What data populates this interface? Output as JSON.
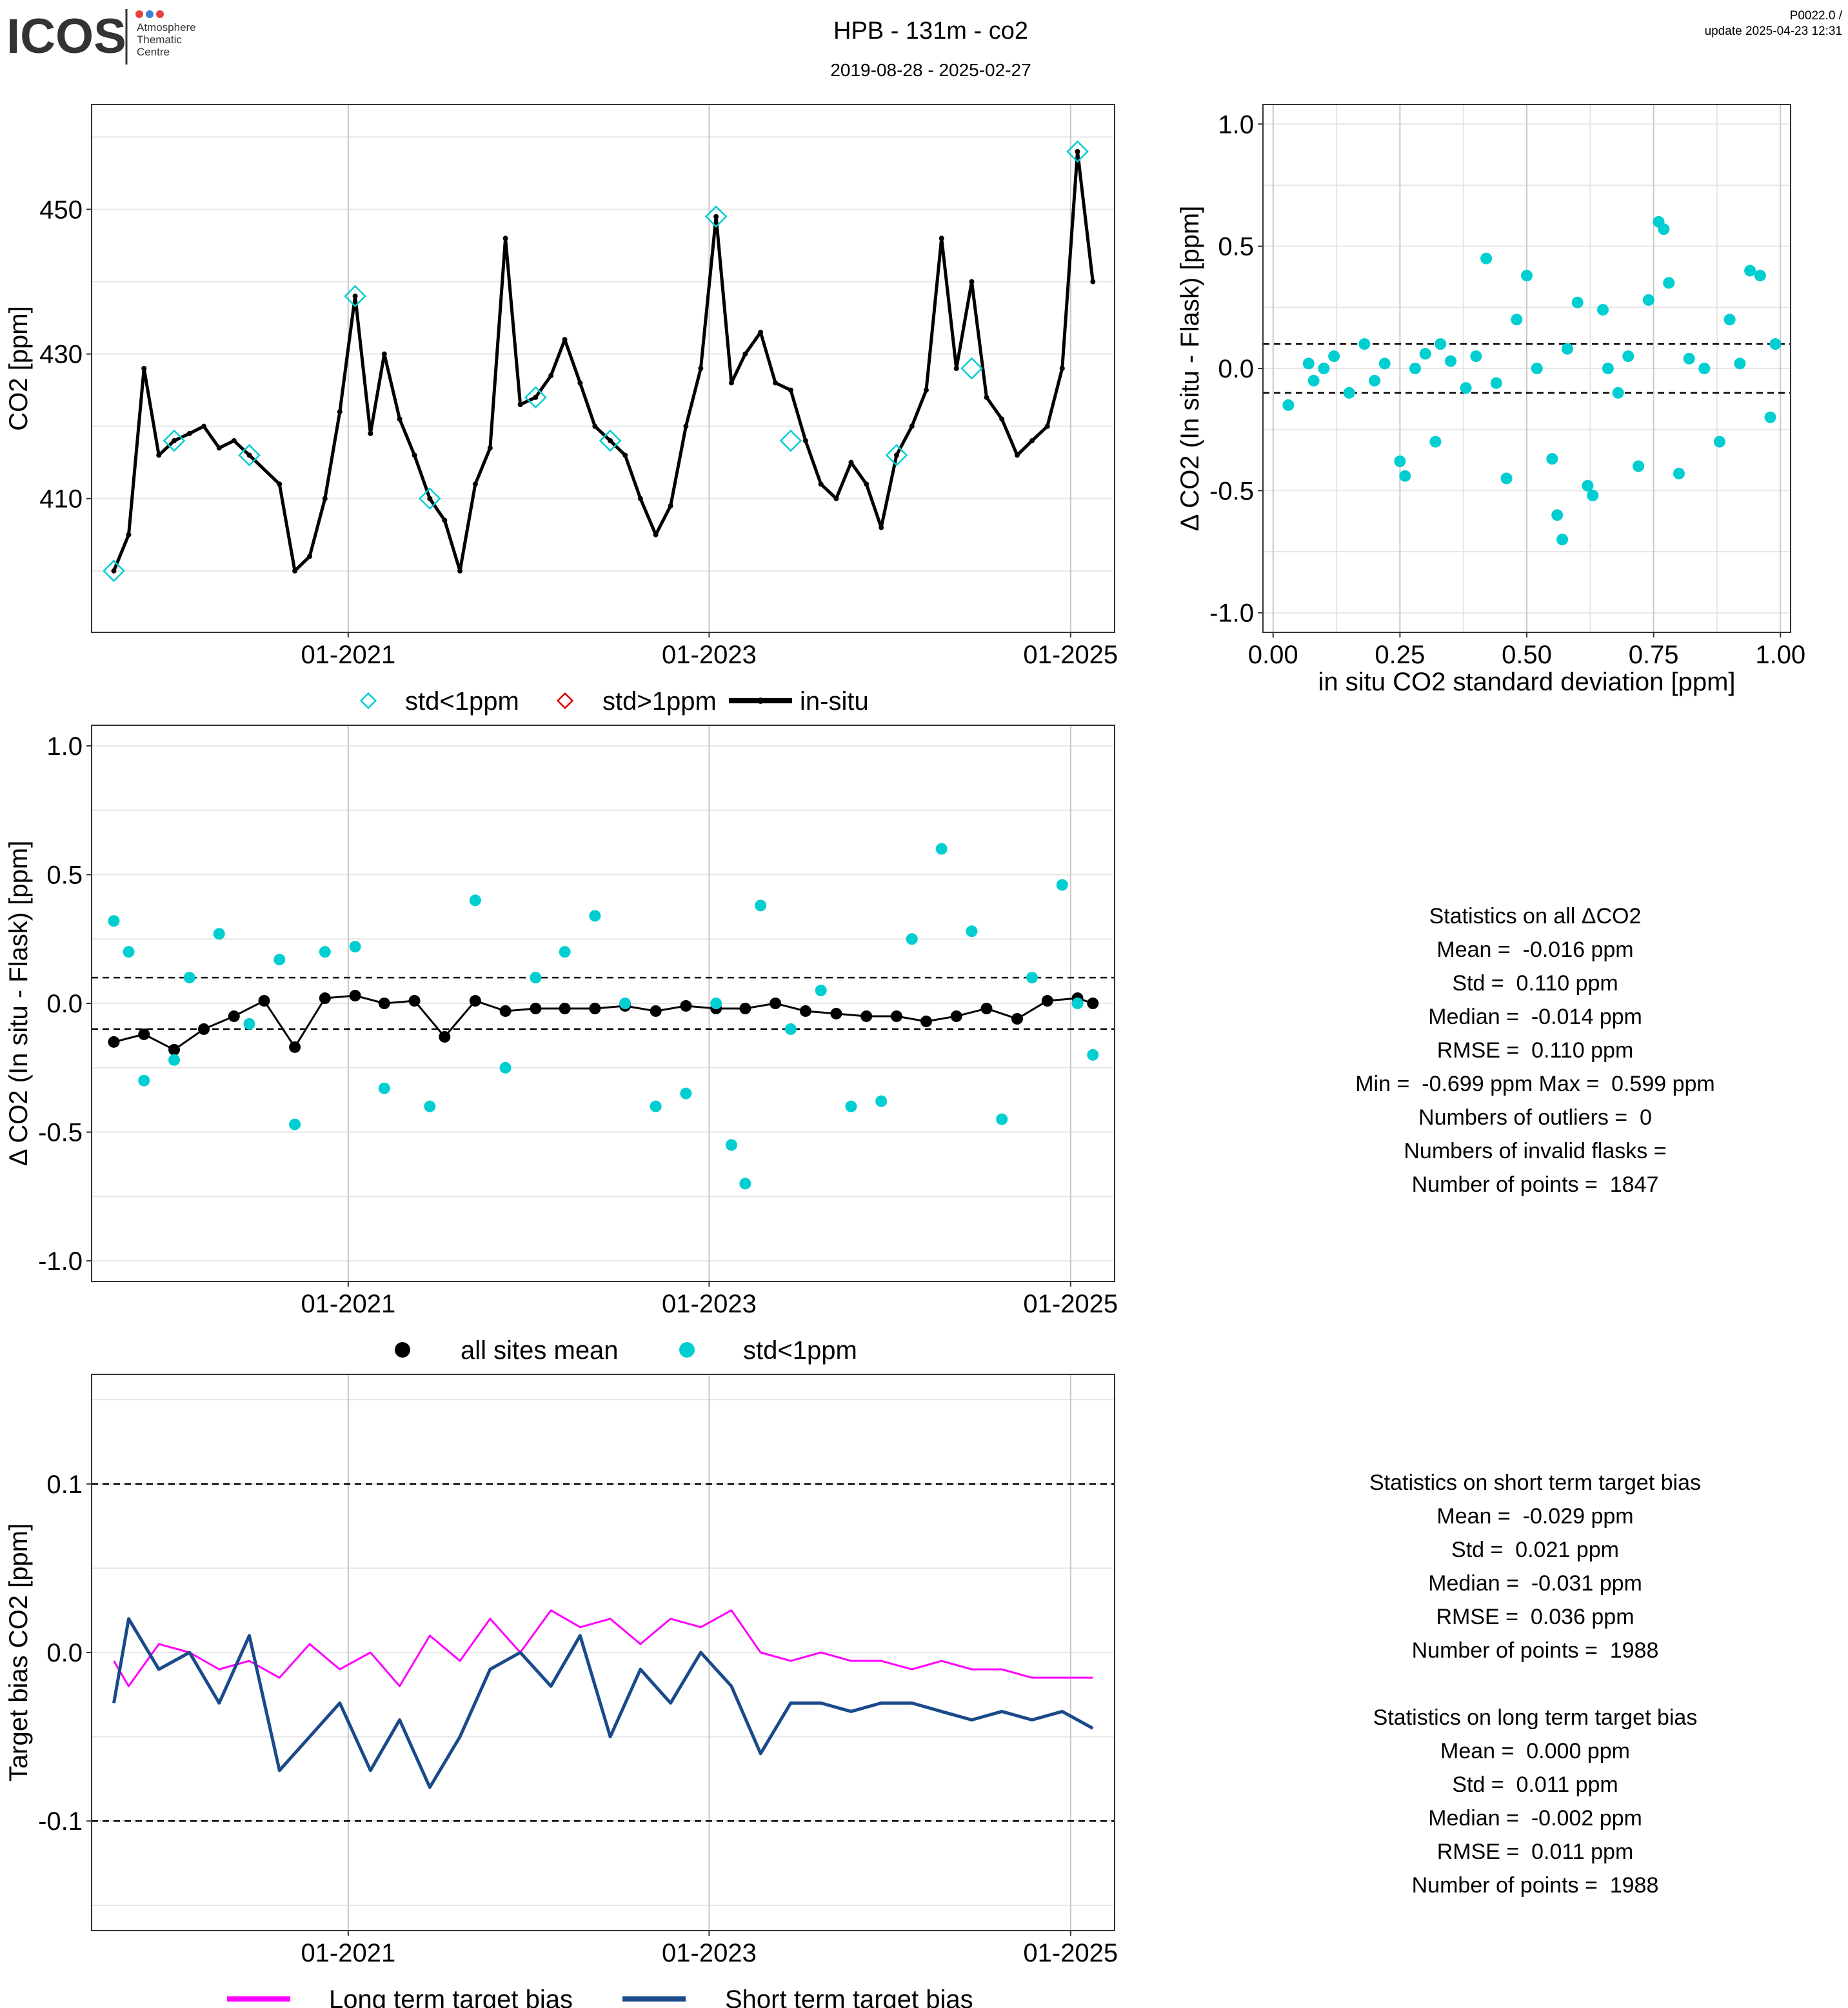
{
  "header": {
    "logo_text": "ICOS",
    "logo_sub": [
      "Atmosphere",
      "Thematic",
      "Centre"
    ],
    "logo_dot_colors": [
      "#e8413c",
      "#3b7fd6",
      "#e8413c"
    ],
    "title": "HPB - 131m - co2",
    "date_range": "2019-08-28 - 2025-02-27",
    "version": "P0022.0 /",
    "update": "update  2025-04-23 12:31"
  },
  "colors": {
    "insitu_line": "#000000",
    "std_lt_1ppm": "#00ced1",
    "std_gt_1ppm": "#e00000",
    "all_sites_mean": "#000000",
    "long_term_bias": "#ff00ff",
    "short_term_bias": "#1a4a8a",
    "grid": "#e6e6e6",
    "grid_major": "#c8c8c8"
  },
  "chart_data": [
    {
      "id": "co2-timeseries",
      "type": "line",
      "title": "",
      "xlabel": "",
      "ylabel": "CO2 [ppm]",
      "x_ticks": [
        "01-2021",
        "01-2023",
        "01-2025"
      ],
      "y_ticks": [
        "410",
        "430",
        "450"
      ],
      "ylim": [
        391.5,
        464.5
      ],
      "xlim": [
        "2019-08-01",
        "2025-03-31"
      ],
      "legend": [
        "std<1ppm",
        "std>1ppm",
        "in-situ"
      ],
      "legend_position": "bottom",
      "series": [
        {
          "name": "in-situ",
          "x": [
            "2019-09",
            "2019-10",
            "2019-11",
            "2019-12",
            "2020-01",
            "2020-02",
            "2020-03",
            "2020-04",
            "2020-05",
            "2020-06",
            "2020-08",
            "2020-09",
            "2020-10",
            "2020-11",
            "2020-12",
            "2021-01",
            "2021-02",
            "2021-03",
            "2021-04",
            "2021-05",
            "2021-06",
            "2021-07",
            "2021-08",
            "2021-09",
            "2021-10",
            "2021-11",
            "2021-12",
            "2022-01",
            "2022-02",
            "2022-03",
            "2022-04",
            "2022-05",
            "2022-06",
            "2022-07",
            "2022-08",
            "2022-09",
            "2022-10",
            "2022-11",
            "2022-12",
            "2023-01",
            "2023-02",
            "2023-03",
            "2023-04",
            "2023-05",
            "2023-06",
            "2023-07",
            "2023-08",
            "2023-09",
            "2023-10",
            "2023-11",
            "2023-12",
            "2024-01",
            "2024-02",
            "2024-03",
            "2024-04",
            "2024-05",
            "2024-06",
            "2024-07",
            "2024-08",
            "2024-09",
            "2024-10",
            "2024-11",
            "2024-12",
            "2025-01",
            "2025-02"
          ],
          "values": [
            400,
            405,
            428,
            416,
            418,
            419,
            420,
            417,
            418,
            416,
            412,
            400,
            402,
            410,
            422,
            438,
            419,
            430,
            421,
            416,
            410,
            407,
            400,
            412,
            417,
            446,
            423,
            424,
            427,
            432,
            426,
            420,
            418,
            416,
            410,
            405,
            409,
            420,
            428,
            449,
            426,
            430,
            433,
            426,
            425,
            418,
            412,
            410,
            415,
            412,
            406,
            416,
            420,
            425,
            446,
            428,
            440,
            424,
            421,
            416,
            418,
            420,
            428,
            458,
            440
          ]
        },
        {
          "name": "std<1ppm",
          "note": "flask sample points coincide with the in-situ series",
          "x": [
            "2019-09",
            "2020-01",
            "2020-06",
            "2021-01",
            "2021-06",
            "2022-01",
            "2022-06",
            "2023-01",
            "2023-06",
            "2024-01",
            "2024-06",
            "2025-01"
          ],
          "values": [
            400,
            418,
            416,
            438,
            410,
            424,
            418,
            449,
            418,
            416,
            428,
            458
          ]
        },
        {
          "name": "std>1ppm",
          "x": [],
          "values": []
        }
      ]
    },
    {
      "id": "delta-vs-std-scatter",
      "type": "scatter",
      "title": "",
      "xlabel": "in situ CO2 standard deviation [ppm]",
      "ylabel": "Δ CO2 (In situ - Flask) [ppm]",
      "x_ticks": [
        "0.00",
        "0.25",
        "0.50",
        "0.75",
        "1.00"
      ],
      "y_ticks": [
        "-1.0",
        "-0.5",
        "0.0",
        "0.5",
        "1.0"
      ],
      "xlim": [
        -0.02,
        1.02
      ],
      "ylim": [
        -1.08,
        1.08
      ],
      "reference_lines": [
        0.1,
        -0.1
      ],
      "series": [
        {
          "name": "std<1ppm",
          "x": [
            0.03,
            0.07,
            0.08,
            0.1,
            0.12,
            0.15,
            0.18,
            0.2,
            0.22,
            0.25,
            0.26,
            0.28,
            0.3,
            0.32,
            0.33,
            0.35,
            0.38,
            0.4,
            0.42,
            0.44,
            0.46,
            0.48,
            0.5,
            0.52,
            0.55,
            0.56,
            0.57,
            0.58,
            0.6,
            0.62,
            0.63,
            0.65,
            0.66,
            0.68,
            0.7,
            0.72,
            0.74,
            0.76,
            0.77,
            0.78,
            0.8,
            0.82,
            0.85,
            0.88,
            0.9,
            0.92,
            0.94,
            0.96,
            0.98,
            0.99
          ],
          "values": [
            -0.15,
            0.02,
            -0.05,
            0.0,
            0.05,
            -0.1,
            0.1,
            -0.05,
            0.02,
            -0.38,
            -0.44,
            0.0,
            0.06,
            -0.3,
            0.1,
            0.03,
            -0.08,
            0.05,
            0.45,
            -0.06,
            -0.45,
            0.2,
            0.38,
            0.0,
            -0.37,
            -0.6,
            -0.7,
            0.08,
            0.27,
            -0.48,
            -0.52,
            0.24,
            0.0,
            -0.1,
            0.05,
            -0.4,
            0.28,
            0.6,
            0.57,
            0.35,
            -0.43,
            0.04,
            0.0,
            -0.3,
            0.2,
            0.02,
            0.4,
            0.38,
            -0.2,
            0.1
          ]
        }
      ]
    },
    {
      "id": "delta-timeseries",
      "type": "scatter",
      "title": "",
      "xlabel": "",
      "ylabel": "Δ CO2 (In situ - Flask) [ppm]",
      "x_ticks": [
        "01-2021",
        "01-2023",
        "01-2025"
      ],
      "y_ticks": [
        "-1.0",
        "-0.5",
        "0.0",
        "0.5",
        "1.0"
      ],
      "ylim": [
        -1.08,
        1.08
      ],
      "xlim": [
        "2019-08-01",
        "2025-03-31"
      ],
      "reference_lines": [
        0.1,
        -0.1
      ],
      "legend": [
        "all sites mean",
        "std<1ppm"
      ],
      "legend_position": "bottom",
      "series": [
        {
          "name": "all sites mean",
          "x": [
            "2019-09",
            "2019-11",
            "2020-01",
            "2020-03",
            "2020-05",
            "2020-07",
            "2020-09",
            "2020-11",
            "2021-01",
            "2021-03",
            "2021-05",
            "2021-07",
            "2021-09",
            "2021-11",
            "2022-01",
            "2022-03",
            "2022-05",
            "2022-07",
            "2022-09",
            "2022-11",
            "2023-01",
            "2023-03",
            "2023-05",
            "2023-07",
            "2023-09",
            "2023-11",
            "2024-01",
            "2024-03",
            "2024-05",
            "2024-07",
            "2024-09",
            "2024-11",
            "2025-01",
            "2025-02"
          ],
          "values": [
            -0.15,
            -0.12,
            -0.18,
            -0.1,
            -0.05,
            0.01,
            -0.17,
            0.02,
            0.03,
            0.0,
            0.01,
            -0.13,
            0.01,
            -0.03,
            -0.02,
            -0.02,
            -0.02,
            -0.01,
            -0.03,
            -0.01,
            -0.02,
            -0.02,
            0.0,
            -0.03,
            -0.04,
            -0.05,
            -0.05,
            -0.07,
            -0.05,
            -0.02,
            -0.06,
            0.01,
            0.02,
            0.0
          ]
        },
        {
          "name": "std<1ppm",
          "x": [
            "2019-09",
            "2019-10",
            "2019-11",
            "2020-01",
            "2020-02",
            "2020-04",
            "2020-06",
            "2020-08",
            "2020-09",
            "2020-11",
            "2021-01",
            "2021-03",
            "2021-06",
            "2021-09",
            "2021-11",
            "2022-01",
            "2022-03",
            "2022-05",
            "2022-07",
            "2022-09",
            "2022-11",
            "2023-01",
            "2023-02",
            "2023-03",
            "2023-04",
            "2023-06",
            "2023-08",
            "2023-10",
            "2023-12",
            "2024-02",
            "2024-04",
            "2024-06",
            "2024-08",
            "2024-10",
            "2024-12",
            "2025-01",
            "2025-02"
          ],
          "values": [
            0.32,
            0.2,
            -0.3,
            -0.22,
            0.1,
            0.27,
            -0.08,
            0.17,
            -0.47,
            0.2,
            0.22,
            -0.33,
            -0.4,
            0.4,
            -0.25,
            0.1,
            0.2,
            0.34,
            0.0,
            -0.4,
            -0.35,
            0.0,
            -0.55,
            -0.7,
            0.38,
            -0.1,
            0.05,
            -0.4,
            -0.38,
            0.25,
            0.6,
            0.28,
            -0.45,
            0.1,
            0.46,
            0.0,
            -0.2
          ]
        }
      ]
    },
    {
      "id": "target-bias",
      "type": "line",
      "title": "",
      "xlabel": "",
      "ylabel": "Target bias CO2 [ppm]",
      "x_ticks": [
        "01-2021",
        "01-2023",
        "01-2025"
      ],
      "y_ticks": [
        "-0.1",
        "0.0",
        "0.1"
      ],
      "ylim": [
        -0.165,
        0.165
      ],
      "xlim": [
        "2019-08-01",
        "2025-03-31"
      ],
      "reference_lines": [
        0.1,
        -0.1
      ],
      "legend": [
        "Long term target bias",
        "Short term target bias"
      ],
      "legend_position": "bottom",
      "series": [
        {
          "name": "Long term target bias",
          "x": [
            "2019-09",
            "2019-10",
            "2019-12",
            "2020-02",
            "2020-04",
            "2020-06",
            "2020-08",
            "2020-10",
            "2020-12",
            "2021-02",
            "2021-04",
            "2021-06",
            "2021-08",
            "2021-10",
            "2021-12",
            "2022-02",
            "2022-04",
            "2022-06",
            "2022-08",
            "2022-10",
            "2022-12",
            "2023-02",
            "2023-04",
            "2023-06",
            "2023-08",
            "2023-10",
            "2023-12",
            "2024-02",
            "2024-04",
            "2024-06",
            "2024-08",
            "2024-10",
            "2024-12",
            "2025-02"
          ],
          "values": [
            -0.005,
            -0.02,
            0.005,
            0.0,
            -0.01,
            -0.005,
            -0.015,
            0.005,
            -0.01,
            0.0,
            -0.02,
            0.01,
            -0.005,
            0.02,
            0.0,
            0.025,
            0.015,
            0.02,
            0.005,
            0.02,
            0.015,
            0.025,
            0.0,
            -0.005,
            0.0,
            -0.005,
            -0.005,
            -0.01,
            -0.005,
            -0.01,
            -0.01,
            -0.015,
            -0.015,
            -0.015
          ]
        },
        {
          "name": "Short term target bias",
          "x": [
            "2019-09",
            "2019-10",
            "2019-12",
            "2020-02",
            "2020-04",
            "2020-06",
            "2020-08",
            "2020-10",
            "2020-12",
            "2021-02",
            "2021-04",
            "2021-06",
            "2021-08",
            "2021-10",
            "2021-12",
            "2022-02",
            "2022-04",
            "2022-06",
            "2022-08",
            "2022-10",
            "2022-12",
            "2023-02",
            "2023-04",
            "2023-06",
            "2023-08",
            "2023-10",
            "2023-12",
            "2024-02",
            "2024-04",
            "2024-06",
            "2024-08",
            "2024-10",
            "2024-12",
            "2025-02"
          ],
          "values": [
            -0.03,
            0.02,
            -0.01,
            0.0,
            -0.03,
            0.01,
            -0.07,
            -0.05,
            -0.03,
            -0.07,
            -0.04,
            -0.08,
            -0.05,
            -0.01,
            0.0,
            -0.02,
            0.01,
            -0.05,
            -0.01,
            -0.03,
            0.0,
            -0.02,
            -0.06,
            -0.03,
            -0.03,
            -0.035,
            -0.03,
            -0.03,
            -0.035,
            -0.04,
            -0.035,
            -0.04,
            -0.035,
            -0.045
          ]
        }
      ]
    }
  ],
  "stats_all": [
    "Statistics on all ΔCO2",
    "Mean =  -0.016 ppm",
    "Std =  0.110 ppm",
    "Median =  -0.014 ppm",
    "RMSE =  0.110 ppm",
    "Min =  -0.699 ppm Max =  0.599 ppm",
    "Numbers of outliers =  0",
    "Numbers of invalid flasks =",
    "Number of points =  1847"
  ],
  "stats_bias": [
    "Statistics on short term target bias",
    "Mean =  -0.029 ppm",
    "Std =  0.021 ppm",
    "Median =  -0.031 ppm",
    "RMSE =  0.036 ppm",
    "Number of points =  1988",
    "",
    "Statistics on long term target bias",
    "Mean =  0.000 ppm",
    "Std =  0.011 ppm",
    "Median =  -0.002 ppm",
    "RMSE =  0.011 ppm",
    "Number of points =  1988"
  ]
}
